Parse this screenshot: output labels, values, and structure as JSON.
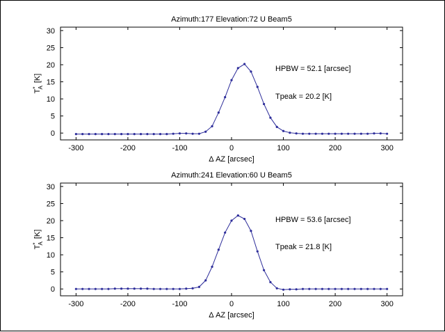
{
  "chart_data": [
    {
      "type": "line",
      "title": "Azimuth:177 Elevation:72 U Beam5",
      "xlabel": "Δ AZ  [arcsec]",
      "ylabel": "T",
      "ylabel_sup": "*",
      "ylabel_sub": "A",
      "ylabel_unit": "[K]",
      "xlim": [
        -330,
        330
      ],
      "ylim": [
        -2,
        31
      ],
      "xticks": [
        -300,
        -200,
        -100,
        0,
        100,
        200,
        300
      ],
      "yticks": [
        0,
        5,
        10,
        15,
        20,
        25,
        30
      ],
      "grid": false,
      "line_color": "#2d2d9a",
      "annotations": [
        "HPBW = 52.1 [arcsec]",
        "Tpeak = 20.2 [K]"
      ],
      "series": [
        {
          "x": [
            -300,
            -287.5,
            -275,
            -262.5,
            -250,
            -237.5,
            -225,
            -212.5,
            -200,
            -187.5,
            -175,
            -162.5,
            -150,
            -137.5,
            -125,
            -112.5,
            -100,
            -87.5,
            -75,
            -62.5,
            -50,
            -37.5,
            -25,
            -12.5,
            0,
            12.5,
            25,
            37.5,
            50,
            62.5,
            75,
            87.5,
            100,
            112.5,
            125,
            137.5,
            150,
            162.5,
            175,
            187.5,
            200,
            212.5,
            225,
            237.5,
            250,
            262.5,
            275,
            287.5,
            300
          ],
          "y": [
            -0.3,
            -0.3,
            -0.3,
            -0.3,
            -0.3,
            -0.3,
            -0.3,
            -0.3,
            -0.3,
            -0.3,
            -0.3,
            -0.3,
            -0.3,
            -0.3,
            -0.3,
            -0.2,
            -0.1,
            -0.1,
            -0.2,
            -0.2,
            0.4,
            2.0,
            6.0,
            10.5,
            15.5,
            19.0,
            20.2,
            18.0,
            13.5,
            8.5,
            4.5,
            1.8,
            0.6,
            0.1,
            -0.1,
            -0.2,
            -0.2,
            -0.2,
            -0.2,
            -0.2,
            -0.2,
            -0.2,
            -0.2,
            -0.2,
            -0.2,
            -0.2,
            -0.1,
            -0.1,
            -0.2
          ]
        }
      ]
    },
    {
      "type": "line",
      "title": "Azimuth:241 Elevation:60 U Beam5",
      "xlabel": "Δ AZ  [arcsec]",
      "ylabel": "T",
      "ylabel_sup": "*",
      "ylabel_sub": "A",
      "ylabel_unit": "[K]",
      "xlim": [
        -330,
        330
      ],
      "ylim": [
        -2,
        31
      ],
      "xticks": [
        -300,
        -200,
        -100,
        0,
        100,
        200,
        300
      ],
      "yticks": [
        0,
        5,
        10,
        15,
        20,
        25,
        30
      ],
      "grid": false,
      "line_color": "#2d2d9a",
      "annotations": [
        "HPBW = 53.6 [arcsec]",
        "Tpeak = 21.8 [K]"
      ],
      "series": [
        {
          "x": [
            -300,
            -287.5,
            -275,
            -262.5,
            -250,
            -237.5,
            -225,
            -212.5,
            -200,
            -187.5,
            -175,
            -162.5,
            -150,
            -137.5,
            -125,
            -112.5,
            -100,
            -87.5,
            -75,
            -62.5,
            -50,
            -37.5,
            -25,
            -12.5,
            0,
            12.5,
            25,
            37.5,
            50,
            62.5,
            75,
            87.5,
            100,
            112.5,
            125,
            137.5,
            150,
            162.5,
            175,
            187.5,
            200,
            212.5,
            225,
            237.5,
            250,
            262.5,
            275,
            287.5,
            300
          ],
          "y": [
            0.0,
            0.0,
            0.0,
            0.0,
            0.0,
            0.0,
            0.1,
            0.1,
            0.1,
            0.1,
            0.1,
            0.1,
            0.0,
            0.0,
            0.0,
            0.0,
            0.0,
            0.1,
            0.2,
            0.6,
            2.5,
            6.5,
            11.5,
            16.5,
            20.0,
            21.5,
            20.5,
            17.0,
            11.0,
            5.5,
            2.0,
            0.2,
            -0.2,
            -0.1,
            -0.1,
            0.0,
            0.0,
            0.0,
            0.0,
            0.0,
            0.0,
            0.0,
            0.0,
            0.0,
            0.0,
            0.0,
            0.0,
            0.0,
            0.0
          ]
        }
      ]
    }
  ]
}
